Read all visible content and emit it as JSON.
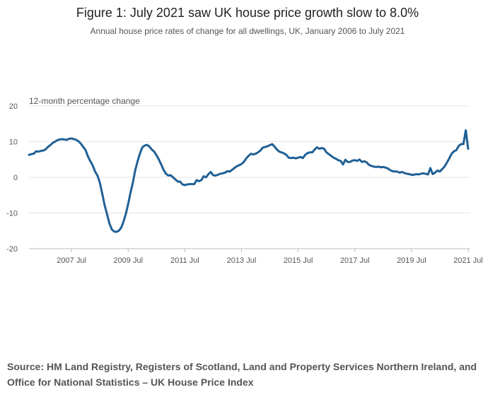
{
  "chart_data": {
    "type": "line",
    "title": "Figure 1: July 2021 saw UK house price growth slow to 8.0%",
    "subtitle": "Annual house price rates of change for all dwellings, UK, January 2006 to July 2021",
    "y_label": "12-month percentage change",
    "source": "Source: HM Land Registry, Registers of Scotland, Land and Property Services Northern Ireland, and Office for National Statistics – UK House Price Index",
    "categories": [
      null,
      null,
      null,
      null,
      null,
      null,
      null,
      null,
      null,
      null,
      null,
      null,
      null,
      null,
      null,
      null,
      null,
      null,
      "2007 Jul",
      null,
      null,
      null,
      null,
      null,
      null,
      null,
      null,
      null,
      null,
      null,
      null,
      null,
      null,
      null,
      null,
      null,
      null,
      null,
      null,
      null,
      null,
      null,
      "2009 Jul",
      null,
      null,
      null,
      null,
      null,
      null,
      null,
      null,
      null,
      null,
      null,
      null,
      null,
      null,
      null,
      null,
      null,
      null,
      null,
      null,
      null,
      null,
      null,
      "2011 Jul",
      null,
      null,
      null,
      null,
      null,
      null,
      null,
      null,
      null,
      null,
      null,
      null,
      null,
      null,
      null,
      null,
      null,
      null,
      null,
      null,
      null,
      null,
      null,
      "2013 Jul",
      null,
      null,
      null,
      null,
      null,
      null,
      null,
      null,
      null,
      null,
      null,
      null,
      null,
      null,
      null,
      null,
      null,
      null,
      null,
      null,
      null,
      null,
      null,
      "2015 Jul",
      null,
      null,
      null,
      null,
      null,
      null,
      null,
      null,
      null,
      null,
      null,
      null,
      null,
      null,
      null,
      null,
      null,
      null,
      null,
      null,
      null,
      null,
      null,
      "2017 Jul",
      null,
      null,
      null,
      null,
      null,
      null,
      null,
      null,
      null,
      null,
      null,
      null,
      null,
      null,
      null,
      null,
      null,
      null,
      null,
      null,
      null,
      null,
      null,
      "2019 Jul",
      null,
      null,
      null,
      null,
      null,
      null,
      null,
      null,
      null,
      null,
      null,
      null,
      null,
      null,
      null,
      null,
      null,
      null,
      null,
      null,
      null,
      null,
      null,
      "2021 Jul"
    ],
    "series": [
      {
        "name": "UK",
        "color": "#206095",
        "values": [
          6.3,
          6.5,
          6.6,
          7.3,
          7.2,
          7.4,
          7.5,
          7.8,
          8.5,
          9.0,
          9.6,
          10.0,
          10.4,
          10.6,
          10.7,
          10.6,
          10.5,
          10.8,
          10.9,
          10.7,
          10.5,
          10.1,
          9.4,
          8.5,
          7.6,
          5.8,
          4.5,
          3.3,
          1.6,
          0.5,
          -1.5,
          -4.5,
          -7.7,
          -10.2,
          -12.8,
          -14.5,
          -15.2,
          -15.3,
          -15.0,
          -14.2,
          -12.5,
          -10.3,
          -7.5,
          -4.3,
          -1.5,
          2.0,
          4.5,
          6.7,
          8.4,
          8.9,
          9.1,
          8.6,
          7.8,
          7.2,
          6.2,
          5.0,
          3.6,
          2.1,
          1.0,
          0.5,
          0.6,
          0.0,
          -0.6,
          -1.2,
          -1.2,
          -2.0,
          -2.2,
          -2.0,
          -1.9,
          -1.9,
          -1.9,
          -0.8,
          -1.1,
          -0.8,
          0.3,
          0.0,
          0.9,
          1.5,
          0.6,
          0.5,
          0.7,
          1.0,
          1.1,
          1.3,
          1.7,
          1.6,
          2.1,
          2.6,
          3.1,
          3.4,
          3.7,
          4.3,
          5.3,
          6.0,
          6.6,
          6.4,
          6.6,
          7.0,
          7.5,
          8.3,
          8.5,
          8.7,
          9.0,
          9.3,
          8.6,
          7.8,
          7.2,
          7.0,
          6.7,
          6.3,
          5.5,
          5.4,
          5.5,
          5.3,
          5.5,
          5.7,
          5.4,
          6.3,
          6.8,
          7.0,
          7.0,
          7.8,
          8.4,
          8.0,
          8.2,
          8.0,
          7.0,
          6.5,
          6.0,
          5.5,
          5.2,
          4.8,
          4.6,
          3.6,
          4.9,
          4.3,
          4.3,
          4.7,
          4.8,
          4.6,
          5.0,
          4.3,
          4.5,
          4.2,
          3.5,
          3.2,
          3.0,
          2.9,
          3.0,
          2.8,
          2.9,
          2.7,
          2.5,
          2.0,
          1.7,
          1.6,
          1.6,
          1.3,
          1.5,
          1.2,
          1.0,
          0.9,
          0.7,
          0.7,
          0.9,
          0.8,
          1.0,
          1.1,
          1.0,
          0.8,
          2.6,
          0.9,
          1.3,
          1.9,
          1.6,
          2.3,
          3.0,
          4.1,
          5.3,
          6.6,
          7.3,
          7.6,
          8.8,
          9.3,
          9.3,
          13.2,
          8.0
        ]
      }
    ],
    "ylim": [
      -20,
      20
    ],
    "yticks": [
      -20,
      -10,
      0,
      10,
      20
    ],
    "grid": true
  }
}
